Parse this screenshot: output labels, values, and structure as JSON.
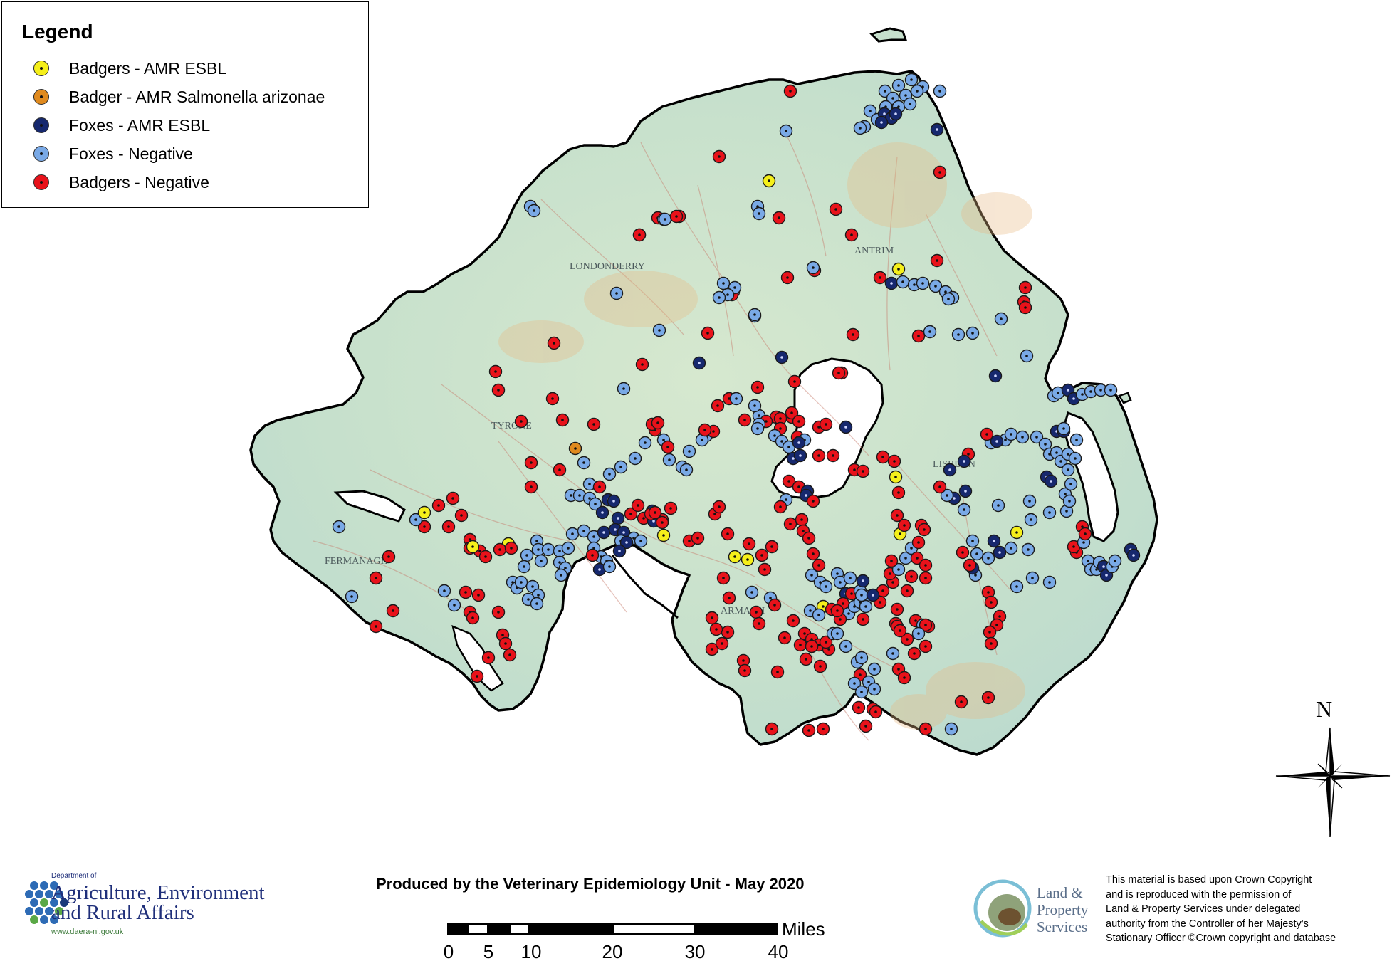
{
  "legend": {
    "title": "Legend",
    "items": [
      {
        "label": "Badgers - AMR ESBL",
        "color": "#f5ef1a"
      },
      {
        "label": "Badger - AMR Salmonella arizonae",
        "color": "#e08a1e"
      },
      {
        "label": "Foxes - AMR ESBL",
        "color": "#16286e"
      },
      {
        "label": "Foxes - Negative",
        "color": "#79a9e6"
      },
      {
        "label": "Badgers - Negative",
        "color": "#e8121a"
      }
    ]
  },
  "map": {
    "place_labels": [
      "LONDONDERRY",
      "ANTRIM",
      "TYRONE",
      "FERMANAGH",
      "ARMAGH",
      "LISBURN"
    ],
    "land_color": "#c9e2cf",
    "water_color": "#ffffff",
    "marker_counts": {
      "badgers_amr_esbl": 13,
      "badger_amr_salmonella_arizonae": 1,
      "foxes_amr_esbl": 33,
      "foxes_negative": 110,
      "badgers_negative": 140
    }
  },
  "north": {
    "label": "N"
  },
  "footer": {
    "producer": "Produced by the Veterinary Epidemiology Unit -  May 2020",
    "scale": {
      "unit": "Miles",
      "ticks": [
        "0",
        "5",
        "10",
        "20",
        "30",
        "40"
      ]
    },
    "daera": {
      "dept": "Department of",
      "line1": "Agriculture, Environment",
      "line2": "and Rural Affairs",
      "url": "www.daera-ni.gov.uk"
    },
    "lps": {
      "line1": "Land &",
      "line2": "Property",
      "line3": "Services"
    },
    "copyright": [
      "This material is based upon Crown Copyright",
      "and is reproduced with the permission of",
      "Land & Property Services under delegated",
      "authority from the Controller of her Majesty's",
      "Stationary Officer ©Crown copyright and database"
    ]
  }
}
